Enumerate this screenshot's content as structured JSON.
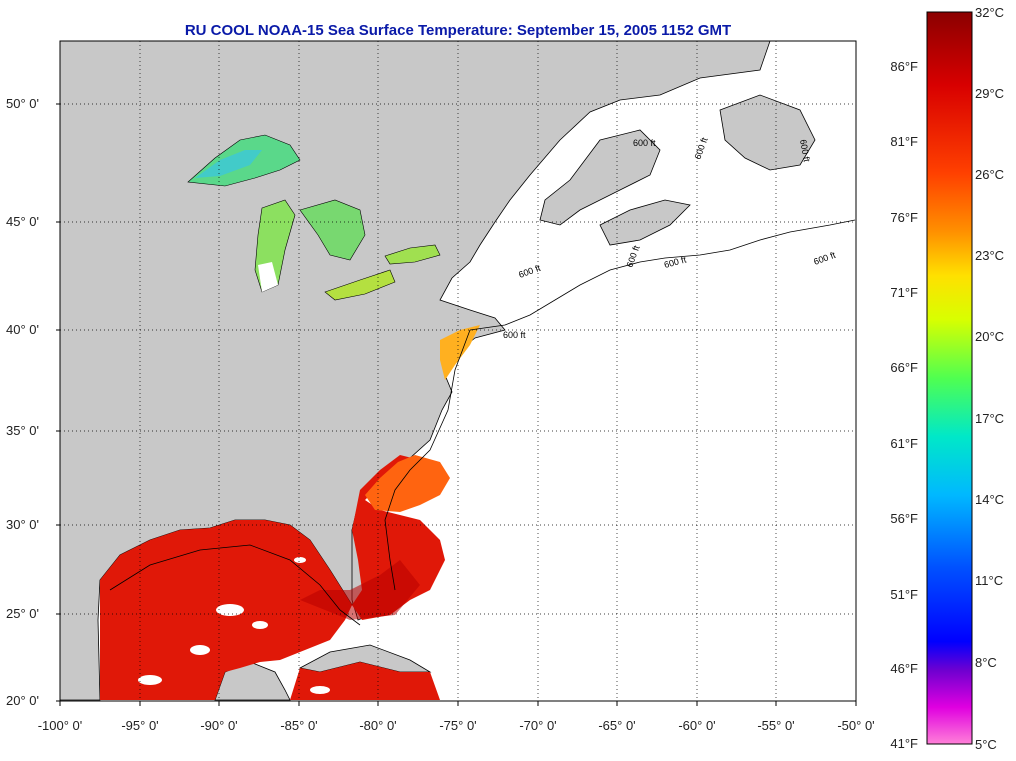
{
  "title": "RU COOL  NOAA-15  Sea Surface Temperature:  September 15, 2005 1152 GMT",
  "axes": {
    "lat_labels": [
      "50° 0'",
      "45° 0'",
      "40° 0'",
      "35° 0'",
      "30° 0'",
      "25° 0'",
      "20° 0'"
    ],
    "lon_labels": [
      "-100° 0'",
      "-95° 0'",
      "-90° 0'",
      "-85° 0'",
      "-80° 0'",
      "-75° 0'",
      "-70° 0'",
      "-65° 0'",
      "-60° 0'",
      "-55° 0'",
      "-50° 0'"
    ]
  },
  "contour_labels": [
    "600 ft",
    "600 ft",
    "600 ft",
    "600 ft",
    "600 ft",
    "600 ft",
    "600 ft",
    "600 ft"
  ],
  "colorbar": {
    "fahrenheit_labels": [
      "86°F",
      "81°F",
      "76°F",
      "71°F",
      "66°F",
      "61°F",
      "56°F",
      "51°F",
      "46°F",
      "41°F"
    ],
    "celsius_labels": [
      "32°C",
      "29°C",
      "26°C",
      "23°C",
      "20°C",
      "17°C",
      "14°C",
      "11°C",
      "8°C",
      "5°C"
    ],
    "colors": [
      "#8b0000",
      "#e00000",
      "#ff3000",
      "#ff7a00",
      "#ffcc00",
      "#e8ff00",
      "#5cff3c",
      "#00e0c0",
      "#00c8ff",
      "#0080ff",
      "#0000ff",
      "#8000c8",
      "#ff00ff",
      "#ff80d8"
    ]
  },
  "colors": {
    "land": "#c8c8c8",
    "no_data": "#ffffff",
    "title": "#0a1aa8"
  }
}
